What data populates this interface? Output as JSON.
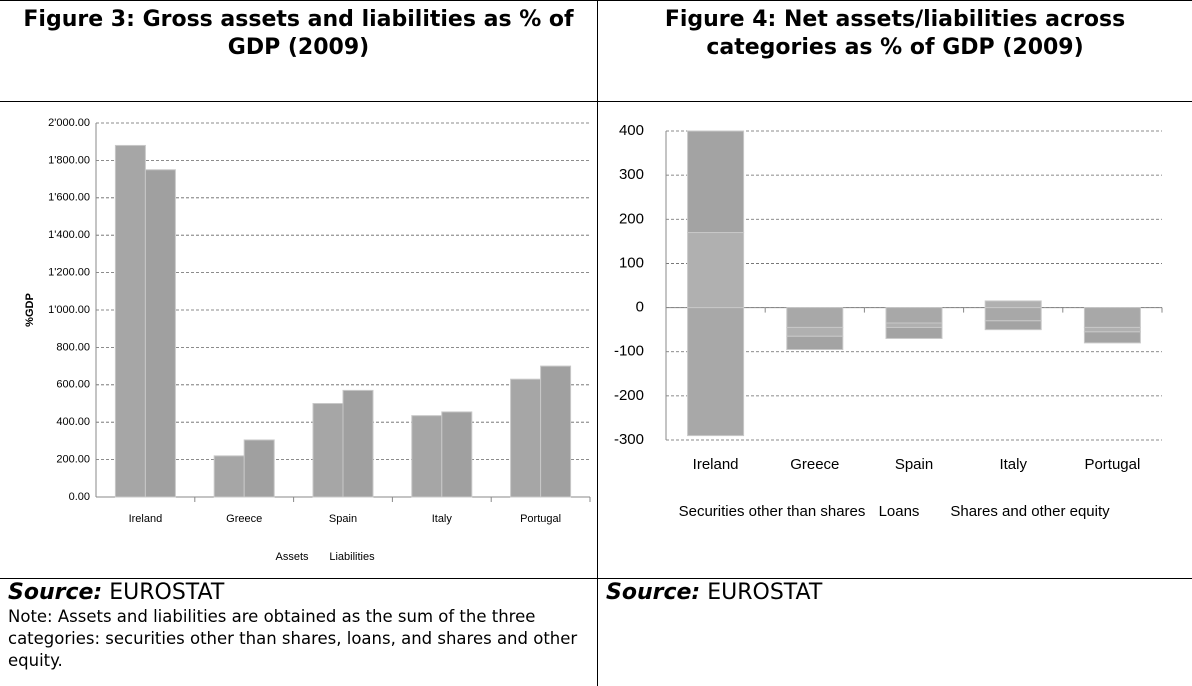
{
  "chart_data": [
    {
      "type": "bar",
      "title": "Figure 3: Gross assets and liabilities as % of GDP (2009)",
      "ylabel": "%GDP",
      "categories": [
        "Ireland",
        "Greece",
        "Spain",
        "Italy",
        "Portugal"
      ],
      "series": [
        {
          "name": "Assets",
          "color": "#a6a6a6",
          "values": [
            1880,
            220,
            500,
            435,
            630
          ]
        },
        {
          "name": "Liabilities",
          "color": "#a0a0a0",
          "values": [
            1750,
            305,
            570,
            455,
            700
          ]
        }
      ],
      "ylim": [
        0,
        2000
      ],
      "yticks": [
        {
          "value": 0,
          "label": "0.00"
        },
        {
          "value": 200,
          "label": "200.00"
        },
        {
          "value": 400,
          "label": "400.00"
        },
        {
          "value": 600,
          "label": "600.00"
        },
        {
          "value": 800,
          "label": "800.00"
        },
        {
          "value": 1000,
          "label": "1'000.00"
        },
        {
          "value": 1200,
          "label": "1'200.00"
        },
        {
          "value": 1400,
          "label": "1'400.00"
        },
        {
          "value": 1600,
          "label": "1'600.00"
        },
        {
          "value": 1800,
          "label": "1'800.00"
        },
        {
          "value": 2000,
          "label": "2'000.00"
        }
      ],
      "grid": true
    },
    {
      "type": "stacked_bar",
      "title": "Figure 4: Net assets/liabilities across categories as % of GDP (2009)",
      "categories": [
        "Ireland",
        "Greece",
        "Spain",
        "Italy",
        "Portugal"
      ],
      "series": [
        {
          "name": "Securities other than shares",
          "color": "#a8a8a8",
          "values": [
            -290,
            -45,
            -35,
            -30,
            -45
          ]
        },
        {
          "name": "Loans",
          "color": "#b0b0b0",
          "values": [
            170,
            -20,
            -10,
            15,
            -10
          ]
        },
        {
          "name": "Shares and other equity",
          "color": "#a3a3a3",
          "values": [
            230,
            -30,
            -25,
            -20,
            -25
          ]
        }
      ],
      "ylim": [
        -300,
        400
      ],
      "yticks": [
        -300,
        -200,
        -100,
        0,
        100,
        200,
        300,
        400
      ],
      "grid": true
    }
  ],
  "sources": [
    {
      "label": "Source:",
      "text": "EUROSTAT"
    },
    {
      "label": "Source:",
      "text": "EUROSTAT"
    }
  ],
  "note": "Note: Assets and liabilities are obtained as the sum of the three categories: securities other than shares, loans, and shares and other equity."
}
